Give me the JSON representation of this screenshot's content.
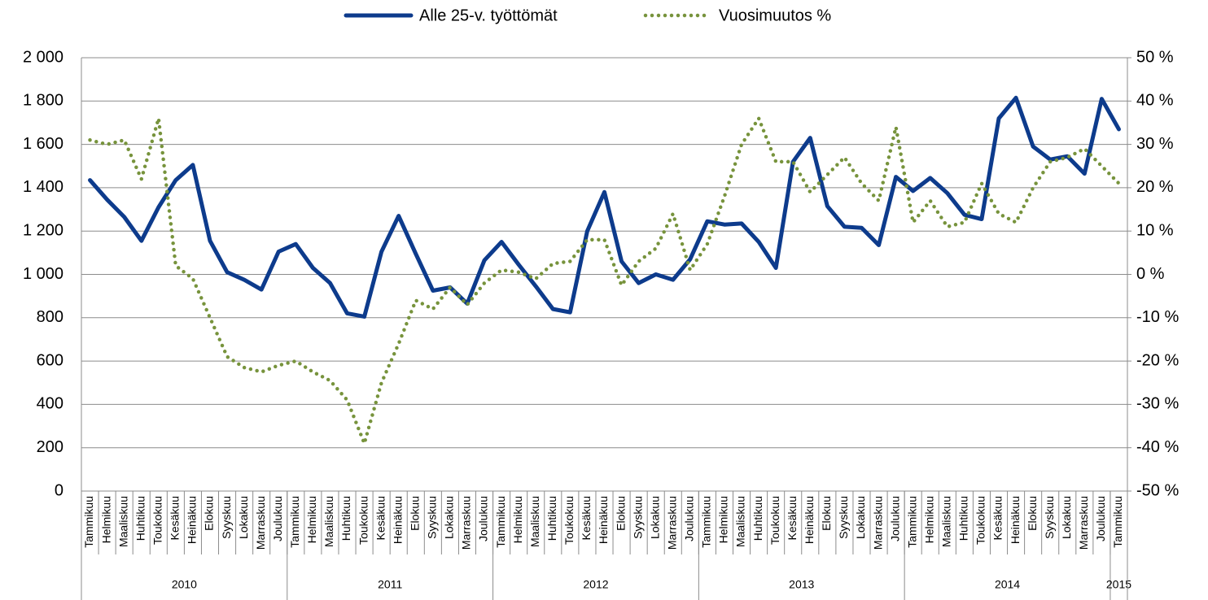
{
  "chart_data": {
    "type": "line",
    "categories": [
      "Tammikuu",
      "Helmikuu",
      "Maaliskuu",
      "Huhtikuu",
      "Toukokuu",
      "Kesäkuu",
      "Heinäkuu",
      "Elokuu",
      "Syyskuu",
      "Lokakuu",
      "Marraskuu",
      "Joulukuu",
      "Tammikuu",
      "Helmikuu",
      "Maaliskuu",
      "Huhtikuu",
      "Toukokuu",
      "Kesäkuu",
      "Heinäkuu",
      "Elokuu",
      "Syyskuu",
      "Lokakuu",
      "Marraskuu",
      "Joulukuu",
      "Tammikuu",
      "Helmikuu",
      "Maaliskuu",
      "Huhtikuu",
      "Toukokuu",
      "Kesäkuu",
      "Heinäkuu",
      "Elokuu",
      "Syyskuu",
      "Lokakuu",
      "Marraskuu",
      "Joulukuu",
      "Tammikuu",
      "Helmikuu",
      "Maaliskuu",
      "Huhtikuu",
      "Toukokuu",
      "Kesäkuu",
      "Heinäkuu",
      "Elokuu",
      "Syyskuu",
      "Lokakuu",
      "Marraskuu",
      "Joulukuu",
      "Tammikuu",
      "Helmikuu",
      "Maaliskuu",
      "Huhtikuu",
      "Toukokuu",
      "Kesäkuu",
      "Heinäkuu",
      "Elokuu",
      "Syyskuu",
      "Lokakuu",
      "Marraskuu",
      "Joulukuu",
      "Tammikuu"
    ],
    "year_groups": [
      {
        "label": "2010",
        "count": 12
      },
      {
        "label": "2011",
        "count": 12
      },
      {
        "label": "2012",
        "count": 12
      },
      {
        "label": "2013",
        "count": 12
      },
      {
        "label": "2014",
        "count": 12
      },
      {
        "label": "2015",
        "count": 1
      }
    ],
    "series": [
      {
        "name": "Alle 25-v. työttömät",
        "color": "#0d3b8c",
        "style": "solid",
        "values": [
          1435,
          1345,
          1265,
          1155,
          1310,
          1435,
          1505,
          1155,
          1010,
          975,
          930,
          1105,
          1140,
          1030,
          960,
          820,
          805,
          1105,
          1270,
          1095,
          925,
          940,
          865,
          1065,
          1150,
          1045,
          945,
          840,
          825,
          1200,
          1380,
          1060,
          960,
          1000,
          975,
          1070,
          1245,
          1230,
          1235,
          1150,
          1030,
          1520,
          1630,
          1315,
          1220,
          1215,
          1135,
          1450,
          1385,
          1445,
          1375,
          1275,
          1255,
          1720,
          1815,
          1590,
          1530,
          1545,
          1465,
          1810,
          1670
        ]
      },
      {
        "name": "Vuosimuutos %",
        "color": "#77933c",
        "style": "dotted",
        "axis": "y2",
        "values": [
          31,
          30,
          31,
          22,
          36,
          2,
          -1,
          -10,
          -19,
          -21.5,
          -22.5,
          -21,
          -20,
          -22.5,
          -24.5,
          -29,
          -39,
          -25,
          -16,
          -6,
          -8,
          -3,
          -7,
          -2,
          1,
          0.5,
          -1,
          2.5,
          3,
          8,
          8,
          -2.5,
          3,
          6,
          14,
          1,
          7,
          18,
          30,
          36,
          26,
          26,
          19,
          23,
          27,
          21,
          17,
          34,
          12,
          17,
          11,
          12,
          21,
          14,
          12,
          20,
          26,
          27,
          29,
          25,
          21
        ]
      }
    ],
    "ylim": [
      0,
      2000
    ],
    "yticks": [
      0,
      {
        "value": 200,
        "label": "200"
      },
      400,
      600,
      800,
      {
        "value": 1000,
        "label": "1 000"
      },
      {
        "value": 1200,
        "label": "1 200"
      },
      {
        "value": 1400,
        "label": "1 400"
      },
      {
        "value": 1600,
        "label": "1 600"
      },
      {
        "value": 1800,
        "label": "1 800"
      },
      {
        "value": 2000,
        "label": "2 000"
      }
    ],
    "y2lim": [
      -50,
      50
    ],
    "y2ticks": [
      {
        "value": -50,
        "label": "-50 %"
      },
      {
        "value": -40,
        "label": "-40 %"
      },
      {
        "value": -30,
        "label": "-30 %"
      },
      {
        "value": -20,
        "label": "-20 %"
      },
      {
        "value": -10,
        "label": "-10 %"
      },
      {
        "value": 0,
        "label": "0 %"
      },
      {
        "value": 10,
        "label": "10 %"
      },
      {
        "value": 20,
        "label": "20 %"
      },
      {
        "value": 30,
        "label": "30 %"
      },
      {
        "value": 40,
        "label": "40 %"
      },
      {
        "value": 50,
        "label": "50 %"
      }
    ],
    "grid": true,
    "legend": "top"
  }
}
